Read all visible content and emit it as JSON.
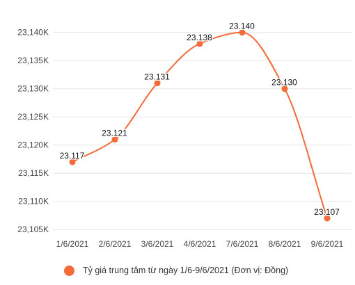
{
  "chart_data": {
    "type": "line",
    "categories": [
      "1/6/2021",
      "2/6/2021",
      "3/6/2021",
      "4/6/2021",
      "7/6/2021",
      "8/6/2021",
      "9/6/2021"
    ],
    "series": [
      {
        "name": "Tỷ giá trung tâm từ ngày 1/6-9/6/2021 (Đơn vị: Đồng)",
        "values": [
          23117,
          23121,
          23131,
          23138,
          23140,
          23130,
          23107
        ],
        "labels": [
          "23.117",
          "23.121",
          "23.131",
          "23.138",
          "23.140",
          "23.130",
          "23.107"
        ],
        "color": "#f26b38"
      }
    ],
    "y_ticks": [
      {
        "value": 23105,
        "label": "23,105K"
      },
      {
        "value": 23110,
        "label": "23,110K"
      },
      {
        "value": 23115,
        "label": "23,115K"
      },
      {
        "value": 23120,
        "label": "23,120K"
      },
      {
        "value": 23125,
        "label": "23,125K"
      },
      {
        "value": 23130,
        "label": "23,130K"
      },
      {
        "value": 23135,
        "label": "23,135K"
      },
      {
        "value": 23140,
        "label": "23,140K"
      }
    ],
    "ylim": [
      23104.2,
      23142.2
    ],
    "grid": "horizontal",
    "legend_position": "bottom"
  }
}
